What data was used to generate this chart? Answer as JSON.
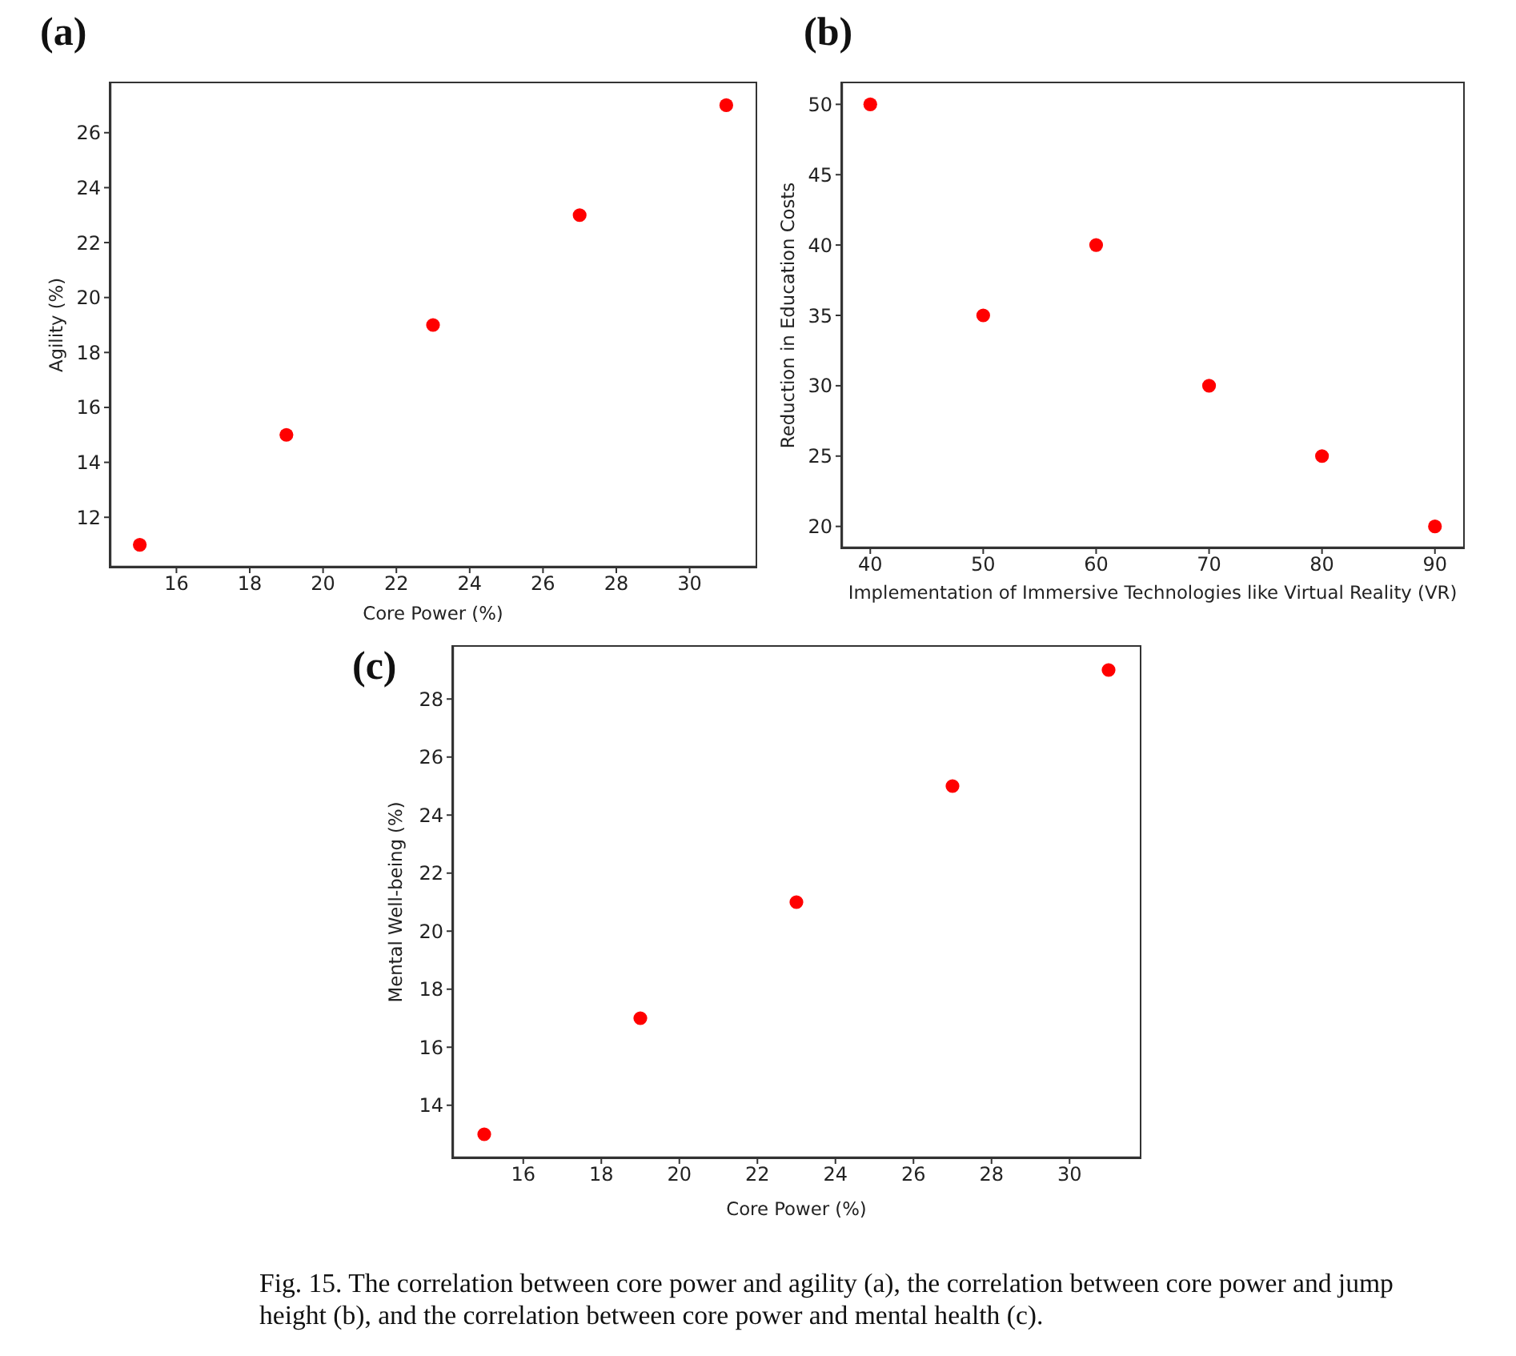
{
  "chart_data": [
    {
      "type": "scatter",
      "title": "(a)",
      "xlabel": "Core Power (%)",
      "ylabel": "Agility (%)",
      "x": [
        15,
        19,
        23,
        27,
        31
      ],
      "values": [
        11,
        15,
        19,
        23,
        27
      ],
      "color": "#ff0000",
      "marker": "circle",
      "xlim": [
        14.2,
        31.8
      ],
      "ylim": [
        10.2,
        27.8
      ],
      "xticks": [
        16,
        18,
        20,
        22,
        24,
        26,
        28,
        30
      ],
      "yticks": [
        12,
        14,
        16,
        18,
        20,
        22,
        24,
        26
      ]
    },
    {
      "type": "scatter",
      "title": "(b)",
      "xlabel": "Implementation of Immersive Technologies like Virtual Reality (VR)",
      "ylabel": "Reduction in Education Costs",
      "x": [
        40,
        50,
        60,
        70,
        80,
        90
      ],
      "values": [
        50,
        35,
        40,
        30,
        25,
        20
      ],
      "color": "#ff0000",
      "marker": "circle",
      "xlim": [
        37.5,
        92.5
      ],
      "ylim": [
        18.5,
        51.5
      ],
      "xticks": [
        40,
        50,
        60,
        70,
        80,
        90
      ],
      "yticks": [
        20,
        25,
        30,
        35,
        40,
        45,
        50
      ]
    },
    {
      "type": "scatter",
      "title": "(c)",
      "xlabel": "Core Power (%)",
      "ylabel": "Mental Well-being (%)",
      "x": [
        15,
        19,
        23,
        27,
        31
      ],
      "values": [
        13,
        17,
        21,
        25,
        29
      ],
      "color": "#ff0000",
      "marker": "circle",
      "xlim": [
        14.2,
        31.8
      ],
      "ylim": [
        12.2,
        29.8
      ],
      "xticks": [
        16,
        18,
        20,
        22,
        24,
        26,
        28,
        30
      ],
      "yticks": [
        14,
        16,
        18,
        20,
        22,
        24,
        26,
        28
      ],
      "annotations": [
        "Fig. 15. The correlation between core power and agility (a), the correlation between core power and jump height (b), and the correlation between core power and mental health (c)."
      ]
    }
  ]
}
